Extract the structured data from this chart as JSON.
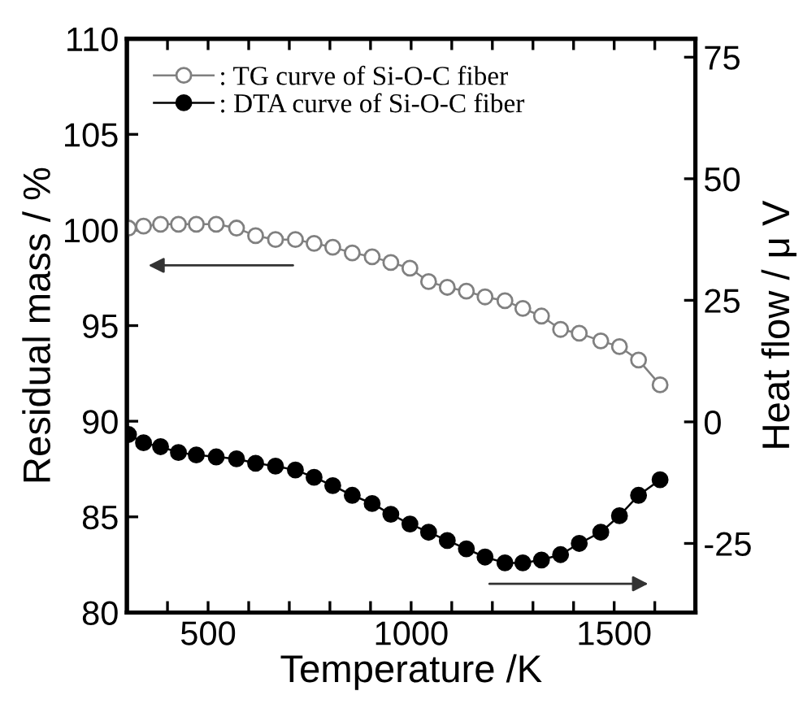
{
  "chart_data": {
    "type": "line",
    "xlabel": "Temperature /K",
    "ylabel": "Residual mass / %",
    "y2label": "Heat flow / μ V",
    "xlim": [
      300,
      1700
    ],
    "xticks": [
      {
        "value": 400,
        "label": null
      },
      500,
      {
        "value": 600,
        "label": null
      },
      {
        "value": 700,
        "label": null
      },
      {
        "value": 800,
        "label": null
      },
      {
        "value": 900,
        "label": null
      },
      1000,
      {
        "value": 1100,
        "label": null
      },
      {
        "value": 1200,
        "label": null
      },
      {
        "value": 1300,
        "label": null
      },
      {
        "value": 1400,
        "label": null
      },
      1500,
      {
        "value": 1600,
        "label": null
      }
    ],
    "ylim": [
      80,
      110
    ],
    "yticks": [
      80,
      85,
      90,
      95,
      100,
      105,
      110
    ],
    "y2lim": [
      -39.2,
      78.8
    ],
    "y2ticks": [
      -25,
      0,
      25,
      50,
      75
    ],
    "x": [
      304,
      341,
      383,
      427,
      471,
      520,
      570,
      617,
      666,
      715,
      761,
      807,
      855,
      904,
      950,
      997,
      1043,
      1089,
      1136,
      1182,
      1231,
      1275,
      1321,
      1368,
      1414,
      1467,
      1513,
      1560,
      1613
    ],
    "marker": "circle",
    "line_style": "solid",
    "grid": false,
    "legend": "top left",
    "series": [
      {
        "name": ": TG curve of Si-O-C fiber",
        "color": "#808080",
        "values": [
          100.1,
          100.2,
          100.3,
          100.3,
          100.3,
          100.3,
          100.1,
          99.7,
          99.5,
          99.5,
          99.3,
          99.1,
          98.8,
          98.6,
          98.3,
          98.0,
          97.3,
          97.0,
          96.8,
          96.5,
          96.3,
          95.9,
          95.5,
          94.8,
          94.6,
          94.2,
          93.9,
          93.2,
          91.9
        ]
      },
      {
        "name": ": DTA curve of Si-O-C fiber",
        "color": "#000000",
        "axis": "y2",
        "values": [
          -2.6,
          -4.3,
          -5.1,
          -6.3,
          -6.8,
          -7.2,
          -7.6,
          -8.5,
          -9.1,
          -9.9,
          -11.4,
          -13.1,
          -15.1,
          -16.8,
          -19.0,
          -21.0,
          -22.7,
          -24.4,
          -26.1,
          -27.8,
          -29.0,
          -29.0,
          -28.4,
          -27.3,
          -25.0,
          -22.7,
          -19.3,
          -15.1,
          -11.9
        ]
      }
    ]
  }
}
